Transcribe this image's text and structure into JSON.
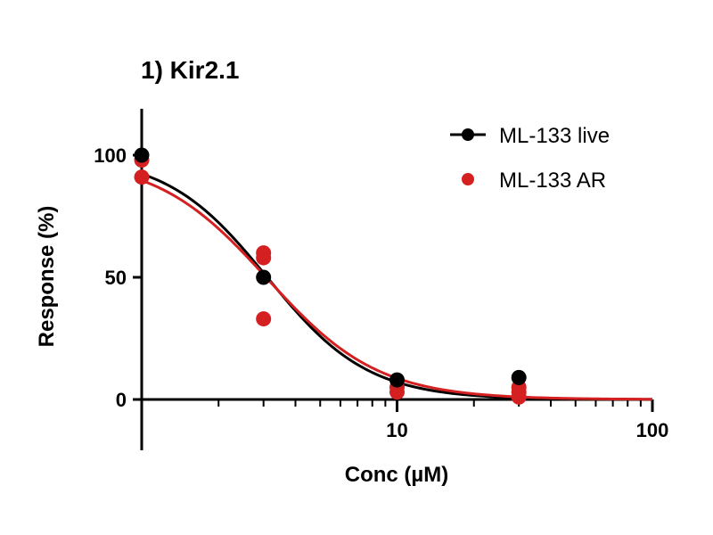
{
  "chart_data": {
    "type": "scatter",
    "title": "1) Kir2.1",
    "xlabel": "Conc (µM)",
    "ylabel": "Response (%)",
    "x_scale": "log",
    "xlim": [
      1,
      100
    ],
    "ylim": [
      -20,
      120
    ],
    "x_ticks": [
      {
        "value": 10,
        "label": "10"
      },
      {
        "value": 100,
        "label": "100"
      }
    ],
    "y_ticks": [
      {
        "value": 0,
        "label": "0"
      },
      {
        "value": 50,
        "label": "50"
      },
      {
        "value": 100,
        "label": "100"
      }
    ],
    "grid": false,
    "legend": "top-right",
    "series": [
      {
        "name": "ML-133 live",
        "color": "#000000",
        "marker": "circle-with-line",
        "points": [
          {
            "x": 1,
            "y": 100
          },
          {
            "x": 3,
            "y": 50
          },
          {
            "x": 10,
            "y": 8
          },
          {
            "x": 30,
            "y": 9
          }
        ],
        "fit": {
          "top": 100,
          "bottom": 0,
          "ic50": 3.1,
          "hill": 2.2
        }
      },
      {
        "name": "ML-133 AR",
        "color": "#d42020",
        "marker": "circle",
        "points": [
          {
            "x": 1,
            "y": 98
          },
          {
            "x": 1,
            "y": 91
          },
          {
            "x": 3,
            "y": 60
          },
          {
            "x": 3,
            "y": 58
          },
          {
            "x": 3,
            "y": 33
          },
          {
            "x": 10,
            "y": 5
          },
          {
            "x": 10,
            "y": 3
          },
          {
            "x": 30,
            "y": 5
          },
          {
            "x": 30,
            "y": 3
          },
          {
            "x": 30,
            "y": 1
          }
        ],
        "fit": {
          "top": 99,
          "bottom": 0,
          "ic50": 3.1,
          "hill": 2.0
        }
      }
    ]
  }
}
